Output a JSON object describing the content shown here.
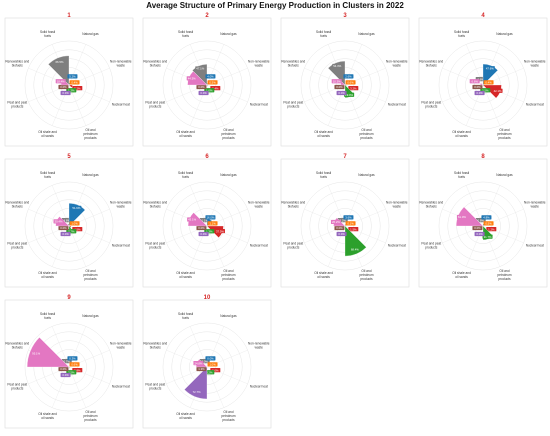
{
  "title": "Average Structure of Primary Energy Production in Clusters in 2022",
  "colors": {
    "Solid fossil fuels": "#7f7f7f",
    "Natural gas": "#1f77b4",
    "Non-renewable waste": "#ff7f0e",
    "Nuclear heat": "#d62728",
    "Oil and petroleum products": "#2ca02c",
    "Oil shale and oil sands": "#9467bd",
    "Peat and peat products": "#8c564b",
    "Renewables and biofuels": "#e377c2"
  },
  "chart_data": [
    {
      "type": "polar-bar",
      "title": "1",
      "categories": [
        "Solid fossil fuels",
        "Natural gas",
        "Non-renewable waste",
        "Nuclear heat",
        "Oil and petroleum products",
        "Oil shale and oil sands",
        "Peat and peat products",
        "Renewables and biofuels"
      ],
      "values": [
        66.5,
        5.2,
        0.4,
        8.2,
        1.3,
        0.0,
        0.0,
        18.4
      ],
      "value_labels": [
        "66.5%",
        "5.2%",
        "0.4%",
        "8.2%",
        "1.3%",
        "0.0%",
        "0.0%",
        "18.4%"
      ],
      "rmax": 100
    },
    {
      "type": "polar-bar",
      "title": "2",
      "categories": [
        "Solid fossil fuels",
        "Natural gas",
        "Non-renewable waste",
        "Nuclear heat",
        "Oil and petroleum products",
        "Oil shale and oil sands",
        "Peat and peat products",
        "Renewables and biofuels"
      ],
      "values": [
        47.1,
        4.0,
        0.5,
        2.4,
        1.6,
        0.0,
        0.0,
        44.3
      ],
      "value_labels": [
        "47.1%",
        "4.0%",
        "0.5%",
        "2.4%",
        "1.6%",
        "0.0%",
        "0.0%",
        "44.3%"
      ],
      "rmax": 100
    },
    {
      "type": "polar-bar",
      "title": "3",
      "categories": [
        "Solid fossil fuels",
        "Natural gas",
        "Non-renewable waste",
        "Nuclear heat",
        "Oil and petroleum products",
        "Oil shale and oil sands",
        "Peat and peat products",
        "Renewables and biofuels"
      ],
      "values": [
        54.3,
        2.6,
        0.6,
        3.2,
        29.0,
        0.0,
        0.0,
        10.3
      ],
      "value_labels": [
        "54.3%",
        "2.6%",
        "0.6%",
        "3.2%",
        "29.0%",
        "0.0%",
        "0.0%",
        "10.3%"
      ],
      "rmax": 100
    },
    {
      "type": "polar-bar",
      "title": "4",
      "categories": [
        "Solid fossil fuels",
        "Natural gas",
        "Non-renewable waste",
        "Nuclear heat",
        "Oil and petroleum products",
        "Oil shale and oil sands",
        "Peat and peat products",
        "Renewables and biofuels"
      ],
      "values": [
        0.8,
        47.6,
        0.4,
        42.1,
        2.5,
        0.0,
        0.0,
        6.6
      ],
      "value_labels": [
        "0.8%",
        "47.6%",
        "0.4%",
        "42.1%",
        "2.5%",
        "0.0%",
        "0.0%",
        "6.6%"
      ],
      "rmax": 100
    },
    {
      "type": "polar-bar",
      "title": "5",
      "categories": [
        "Solid fossil fuels",
        "Natural gas",
        "Non-renewable waste",
        "Nuclear heat",
        "Oil and petroleum products",
        "Oil shale and oil sands",
        "Peat and peat products",
        "Renewables and biofuels"
      ],
      "values": [
        4.8,
        51.6,
        1.0,
        4.5,
        7.7,
        0.0,
        0.0,
        30.4
      ],
      "value_labels": [
        "4.8%",
        "51.6%",
        "1.0%",
        "4.5%",
        "7.7%",
        "0.0%",
        "0.0%",
        "30.4%"
      ],
      "rmax": 100
    },
    {
      "type": "polar-bar",
      "title": "6",
      "categories": [
        "Solid fossil fuels",
        "Natural gas",
        "Non-renewable waste",
        "Nuclear heat",
        "Oil and petroleum products",
        "Oil shale and oil sands",
        "Peat and peat products",
        "Renewables and biofuels"
      ],
      "values": [
        1.1,
        16.0,
        1.1,
        37.5,
        1.3,
        0.0,
        0.0,
        43.1
      ],
      "value_labels": [
        "1.1%",
        "16.0%",
        "1.1%",
        "37.5%",
        "1.3%",
        "0.0%",
        "0.0%",
        "43.1%"
      ],
      "rmax": 100
    },
    {
      "type": "polar-bar",
      "title": "7",
      "categories": [
        "Solid fossil fuels",
        "Natural gas",
        "Non-renewable waste",
        "Nuclear heat",
        "Oil and petroleum products",
        "Oil shale and oil sands",
        "Peat and peat products",
        "Renewables and biofuels"
      ],
      "values": [
        0.2,
        3.6,
        0.1,
        1.5,
        68.4,
        0.0,
        0.0,
        26.2
      ],
      "value_labels": [
        "0.2%",
        "3.6%",
        "0.1%",
        "1.5%",
        "68.4%",
        "0.0%",
        "0.0%",
        "26.2%"
      ],
      "rmax": 100
    },
    {
      "type": "polar-bar",
      "title": "8",
      "categories": [
        "Solid fossil fuels",
        "Natural gas",
        "Non-renewable waste",
        "Nuclear heat",
        "Oil and petroleum products",
        "Oil shale and oil sands",
        "Peat and peat products",
        "Renewables and biofuels"
      ],
      "values": [
        0.8,
        4.8,
        0.5,
        1.2,
        31.7,
        0.0,
        0.0,
        61.0
      ],
      "value_labels": [
        "0.8%",
        "4.8%",
        "0.5%",
        "1.2%",
        "31.7%",
        "0.0%",
        "0.0%",
        "61.0%"
      ],
      "rmax": 100
    },
    {
      "type": "polar-bar",
      "title": "9",
      "categories": [
        "Solid fossil fuels",
        "Natural gas",
        "Non-renewable waste",
        "Nuclear heat",
        "Oil and petroleum products",
        "Oil shale and oil sands",
        "Peat and peat products",
        "Renewables and biofuels"
      ],
      "values": [
        0.7,
        0.3,
        0.6,
        0.8,
        2.5,
        0.0,
        0.0,
        95.1
      ],
      "value_labels": [
        "0.7%",
        "0.3%",
        "0.6%",
        "0.8%",
        "2.5%",
        "0.0%",
        "0.0%",
        "95.1%"
      ],
      "rmax": 100
    },
    {
      "type": "polar-bar",
      "title": "10",
      "categories": [
        "Solid fossil fuels",
        "Natural gas",
        "Non-renewable waste",
        "Nuclear heat",
        "Oil and petroleum products",
        "Oil shale and oil sands",
        "Peat and peat products",
        "Renewables and biofuels"
      ],
      "values": [
        0.0,
        0.0,
        1.0,
        0.0,
        0.2,
        72.7,
        1.3,
        24.8
      ],
      "value_labels": [
        "0.0%",
        "0.0%",
        "1.0%",
        "0.0%",
        "0.2%",
        "72.7%",
        "1.3%",
        "24.8%"
      ],
      "rmax": 100
    }
  ]
}
